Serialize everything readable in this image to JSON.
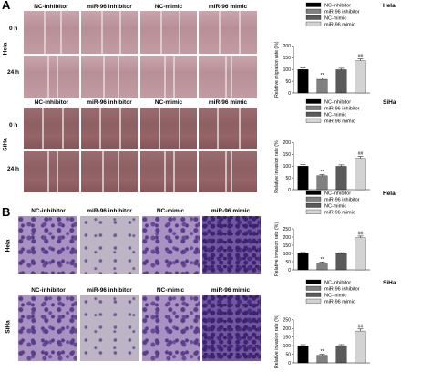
{
  "panel_labels": {
    "a": "A",
    "b": "B"
  },
  "wound": {
    "col_titles": [
      "NC-inhibitor",
      "miR-96 inhibitor",
      "NC-mimic",
      "miR-96 mimic"
    ],
    "cell_lines": [
      "Hela",
      "SiHa"
    ],
    "time_labels": [
      "0 h",
      "24 h"
    ]
  },
  "transwell": {
    "col_titles": [
      "NC-inhibitor",
      "miR-96 inhibitor",
      "NC-mimic",
      "miR-96 mimic"
    ],
    "cell_lines": [
      "Hela",
      "SiHa"
    ]
  },
  "colors": {
    "NC-inhibitor": "#000000",
    "miR-96 inhibitor": "#808080",
    "NC-mimic": "#5a5a5a",
    "miR-96 mimic": "#d3d3d3"
  },
  "chart_data": [
    {
      "type": "bar",
      "title": "Hela",
      "ylabel": "Relative migration rate (%)",
      "categories": [
        "NC-inhibitor",
        "miR-96 inhibitor",
        "NC-mimic",
        "miR-96 mimic"
      ],
      "values": [
        100,
        58,
        99,
        137
      ],
      "errors": [
        6,
        5,
        6,
        8
      ],
      "annotations": [
        "",
        "**",
        "",
        "##"
      ],
      "ylim": [
        0,
        200
      ],
      "yticks": [
        0,
        50,
        100,
        150,
        200
      ],
      "legend": [
        "NC-inhibitor",
        "miR-96 inhibitor",
        "NC-mimic",
        "miR-96 mimic"
      ]
    },
    {
      "type": "bar",
      "title": "SiHa",
      "ylabel": "Relative invasion rate (%)",
      "categories": [
        "NC-inhibitor",
        "miR-96 inhibitor",
        "NC-mimic",
        "miR-96 mimic"
      ],
      "values": [
        100,
        59,
        99,
        133
      ],
      "errors": [
        6,
        5,
        6,
        8
      ],
      "annotations": [
        "",
        "**",
        "",
        "##"
      ],
      "ylim": [
        0,
        200
      ],
      "yticks": [
        0,
        50,
        100,
        150,
        200
      ],
      "legend": [
        "NC-inhibitor",
        "miR-96 inhibitor",
        "NC-mimic",
        "miR-96 mimic"
      ]
    },
    {
      "type": "bar",
      "title": "Hela",
      "ylabel": "Relative invasion rate (%)",
      "categories": [
        "NC-inhibitor",
        "miR-96 inhibitor",
        "NC-mimic",
        "miR-96 mimic"
      ],
      "values": [
        100,
        43,
        99,
        196
      ],
      "errors": [
        6,
        5,
        6,
        10
      ],
      "annotations": [
        "",
        "**",
        "",
        "##"
      ],
      "ylim": [
        0,
        250
      ],
      "yticks": [
        0,
        50,
        100,
        150,
        200,
        250
      ],
      "legend": [
        "NC-inhibitor",
        "miR-96 inhibitor",
        "NC-mimic",
        "miR-96 mimic"
      ]
    },
    {
      "type": "bar",
      "title": "SiHa",
      "ylabel": "Relative invasion rate (%)",
      "categories": [
        "NC-inhibitor",
        "miR-96 inhibitor",
        "NC-mimic",
        "miR-96 mimic"
      ],
      "values": [
        100,
        44,
        100,
        185
      ],
      "errors": [
        6,
        5,
        6,
        12
      ],
      "annotations": [
        "",
        "**",
        "",
        "##"
      ],
      "ylim": [
        0,
        250
      ],
      "yticks": [
        0,
        50,
        100,
        150,
        200,
        250
      ],
      "legend": [
        "NC-inhibitor",
        "miR-96 inhibitor",
        "NC-mimic",
        "miR-96 mimic"
      ]
    }
  ]
}
